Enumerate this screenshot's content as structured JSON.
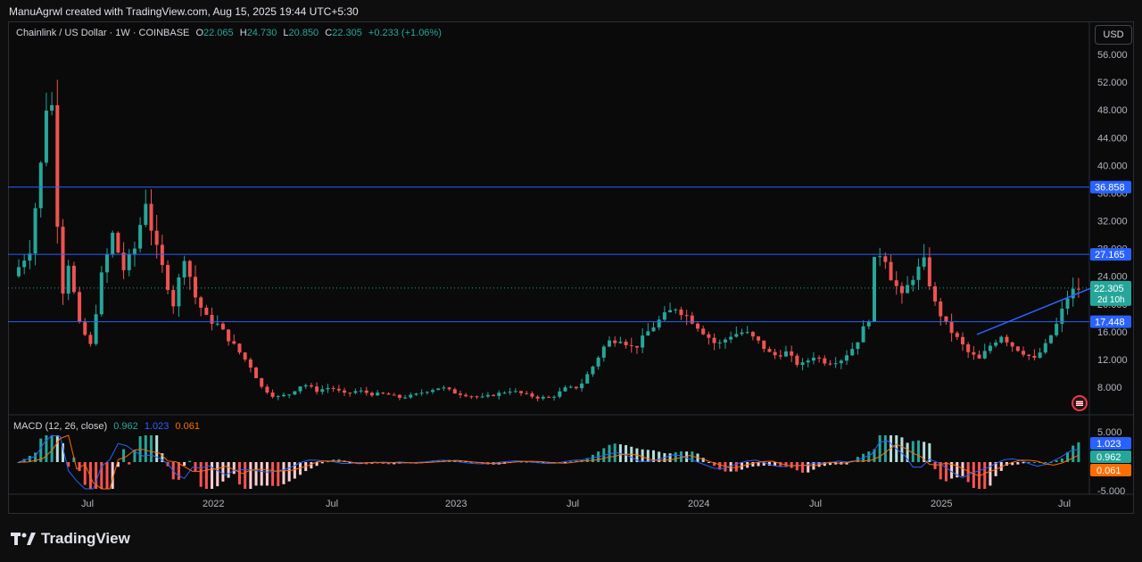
{
  "header": {
    "attribution": "ManuAgrwl created with TradingView.com, Aug 15, 2025 19:44 UTC+5:30"
  },
  "legend": {
    "symbol": "Chainlink / US Dollar · 1W · COINBASE",
    "o_label": "O",
    "o_value": "22.065",
    "h_label": "H",
    "h_value": "24.730",
    "l_label": "L",
    "l_value": "20.850",
    "c_label": "C",
    "c_value": "22.305",
    "change": "+0.233 (+1.06%)"
  },
  "currency_button": "USD",
  "price_axis": {
    "ticks": [
      "56.000",
      "52.000",
      "48.000",
      "44.000",
      "40.000",
      "36.000",
      "32.000",
      "28.000",
      "24.000",
      "20.000",
      "16.000",
      "12.000",
      "8.000"
    ],
    "tick_values": [
      56,
      52,
      48,
      44,
      40,
      36,
      32,
      28,
      24,
      20,
      16,
      12,
      8
    ]
  },
  "levels": [
    {
      "label": "36.858",
      "value": 36.858,
      "color": "#2962ff"
    },
    {
      "label": "27.165",
      "value": 27.165,
      "color": "#2962ff"
    },
    {
      "label": "17.448",
      "value": 17.448,
      "color": "#2962ff"
    }
  ],
  "last_price": {
    "label": "22.305",
    "value": 22.305,
    "countdown": "2d 10h",
    "color": "#26a69a"
  },
  "time_axis": [
    "Jul",
    "2022",
    "Jul",
    "2023",
    "Jul",
    "2024",
    "Jul",
    "2025",
    "Jul"
  ],
  "macd": {
    "label": "MACD (12, 26, close)",
    "histogram": "0.962",
    "macd_line": "1.023",
    "signal": "0.061",
    "axis_ticks": [
      "5.000",
      "-5.000"
    ],
    "badges": [
      {
        "label": "1.023",
        "color": "#2962ff"
      },
      {
        "label": "0.962",
        "color": "#26a69a"
      },
      {
        "label": "0.061",
        "color": "#ff6d00"
      }
    ]
  },
  "chart_data": {
    "type": "candlestick",
    "interval": "1W",
    "ylim": [
      5,
      58
    ],
    "x_labels": [
      "Jul",
      "2022",
      "Jul",
      "2023",
      "Jul",
      "2024",
      "Jul",
      "2025",
      "Jul"
    ],
    "key_points": [
      {
        "period": "2021 peak",
        "high": 52.9
      },
      {
        "period": "2021 Nov",
        "high": 38.0
      },
      {
        "period": "2022 Jul",
        "low": 5.5
      },
      {
        "period": "2024 Mar",
        "high": 22.8
      },
      {
        "period": "2024 Dec",
        "high": 30.9
      },
      {
        "period": "2025 Apr",
        "low": 10.1
      },
      {
        "period": "2025 Aug",
        "close": 22.305
      }
    ],
    "colors": {
      "up": "#26a69a",
      "down": "#ef5350"
    }
  },
  "brand": {
    "name": "TradingView"
  },
  "icons": [
    "tradingview-logo-icon",
    "us-flag-icon"
  ]
}
